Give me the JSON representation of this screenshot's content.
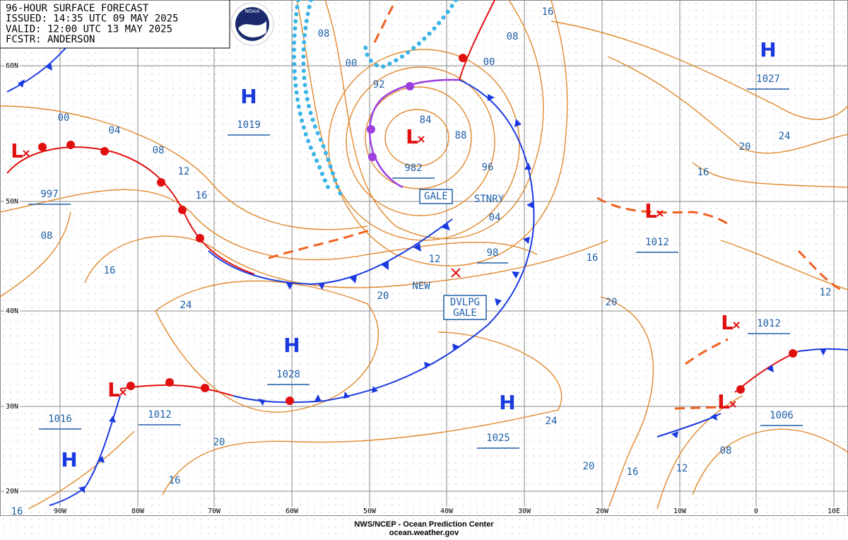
{
  "header": {
    "lines": [
      "96-HOUR SURFACE FORECAST",
      "ISSUED: 14:35 UTC 09 MAY 2025",
      "VALID:  12:00 UTC 13 MAY 2025",
      "FCSTR: ANDERSON"
    ],
    "logo": "NOAA"
  },
  "latitude_labels": [
    "60N",
    "50N",
    "40N",
    "30N",
    "20N"
  ],
  "longitude_labels": [
    "90W",
    "80W",
    "70W",
    "60W",
    "50W",
    "40W",
    "30W",
    "20W",
    "10W",
    "0",
    "10E"
  ],
  "pressure_centers": [
    {
      "symbol": "H",
      "pressure": 1019
    },
    {
      "symbol": "L",
      "pressure": 982
    },
    {
      "symbol": "L",
      "pressure": 997
    },
    {
      "symbol": "H",
      "pressure": 1027
    },
    {
      "symbol": "L",
      "pressure": 1012
    },
    {
      "symbol": "L",
      "pressure": 1012
    },
    {
      "symbol": "H",
      "pressure": 1028
    },
    {
      "symbol": "L",
      "pressure": 1012
    },
    {
      "symbol": "H",
      "pressure": 1016
    },
    {
      "symbol": "H",
      "pressure": 1025
    },
    {
      "symbol": "L",
      "pressure": 1006
    }
  ],
  "new_low": {
    "pressure": "98",
    "label": "NEW"
  },
  "isobar_labels": [
    "16",
    "08",
    "08",
    "00",
    "00",
    "92",
    "84",
    "88",
    "96",
    "00",
    "04",
    "08",
    "12",
    "16",
    "04",
    "12",
    "20",
    "24",
    "16",
    "08",
    "16",
    "20",
    "20",
    "24",
    "16",
    "12",
    "24",
    "20",
    "20",
    "16",
    "12",
    "08",
    "16",
    "16"
  ],
  "annotations": {
    "gale": "GALE",
    "stationary": "STNRY",
    "developing_gale": [
      "DVLPG",
      "GALE"
    ]
  },
  "footer": [
    "NWS/NCEP - Ocean Prediction Center",
    "ocean.weather.gov"
  ]
}
